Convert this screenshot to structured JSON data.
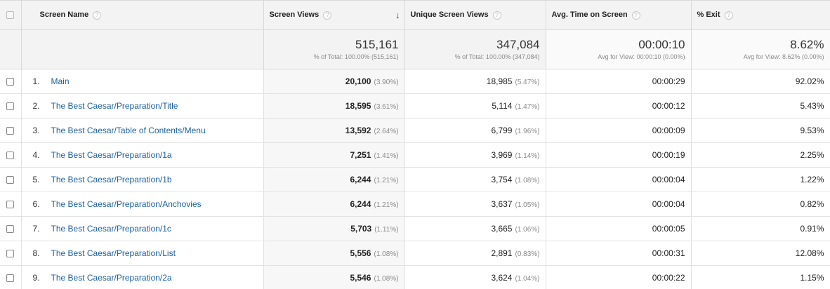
{
  "columns": {
    "name": "Screen Name",
    "views": "Screen Views",
    "unique": "Unique Screen Views",
    "time": "Avg. Time on Screen",
    "exit": "% Exit"
  },
  "help_glyph": "?",
  "sort_glyph": "↓",
  "totals": {
    "views": "515,161",
    "views_sub": "% of Total: 100.00% (515,161)",
    "unique": "347,084",
    "unique_sub": "% of Total: 100.00% (347,084)",
    "time": "00:00:10",
    "time_sub": "Avg for View: 00:00:10 (0.00%)",
    "exit": "8.62%",
    "exit_sub": "Avg for View: 8.62% (0.00%)"
  },
  "rows": [
    {
      "rank": "1.",
      "name": "Main",
      "views": "20,100",
      "views_pct": "(3.90%)",
      "unique": "18,985",
      "unique_pct": "(5.47%)",
      "time": "00:00:29",
      "exit": "92.02%"
    },
    {
      "rank": "2.",
      "name": "The Best Caesar/Preparation/Title",
      "views": "18,595",
      "views_pct": "(3.61%)",
      "unique": "5,114",
      "unique_pct": "(1.47%)",
      "time": "00:00:12",
      "exit": "5.43%"
    },
    {
      "rank": "3.",
      "name": "The Best Caesar/Table of Contents/Menu",
      "views": "13,592",
      "views_pct": "(2.64%)",
      "unique": "6,799",
      "unique_pct": "(1.96%)",
      "time": "00:00:09",
      "exit": "9.53%"
    },
    {
      "rank": "4.",
      "name": "The Best Caesar/Preparation/1a",
      "views": "7,251",
      "views_pct": "(1.41%)",
      "unique": "3,969",
      "unique_pct": "(1.14%)",
      "time": "00:00:19",
      "exit": "2.25%"
    },
    {
      "rank": "5.",
      "name": "The Best Caesar/Preparation/1b",
      "views": "6,244",
      "views_pct": "(1.21%)",
      "unique": "3,754",
      "unique_pct": "(1.08%)",
      "time": "00:00:04",
      "exit": "1.22%"
    },
    {
      "rank": "6.",
      "name": "The Best Caesar/Preparation/Anchovies",
      "views": "6,244",
      "views_pct": "(1.21%)",
      "unique": "3,637",
      "unique_pct": "(1.05%)",
      "time": "00:00:04",
      "exit": "0.82%"
    },
    {
      "rank": "7.",
      "name": "The Best Caesar/Preparation/1c",
      "views": "5,703",
      "views_pct": "(1.11%)",
      "unique": "3,665",
      "unique_pct": "(1.06%)",
      "time": "00:00:05",
      "exit": "0.91%"
    },
    {
      "rank": "8.",
      "name": "The Best Caesar/Preparation/List",
      "views": "5,556",
      "views_pct": "(1.08%)",
      "unique": "2,891",
      "unique_pct": "(0.83%)",
      "time": "00:00:31",
      "exit": "12.08%"
    },
    {
      "rank": "9.",
      "name": "The Best Caesar/Preparation/2a",
      "views": "5,546",
      "views_pct": "(1.08%)",
      "unique": "3,624",
      "unique_pct": "(1.04%)",
      "time": "00:00:22",
      "exit": "1.15%"
    }
  ]
}
